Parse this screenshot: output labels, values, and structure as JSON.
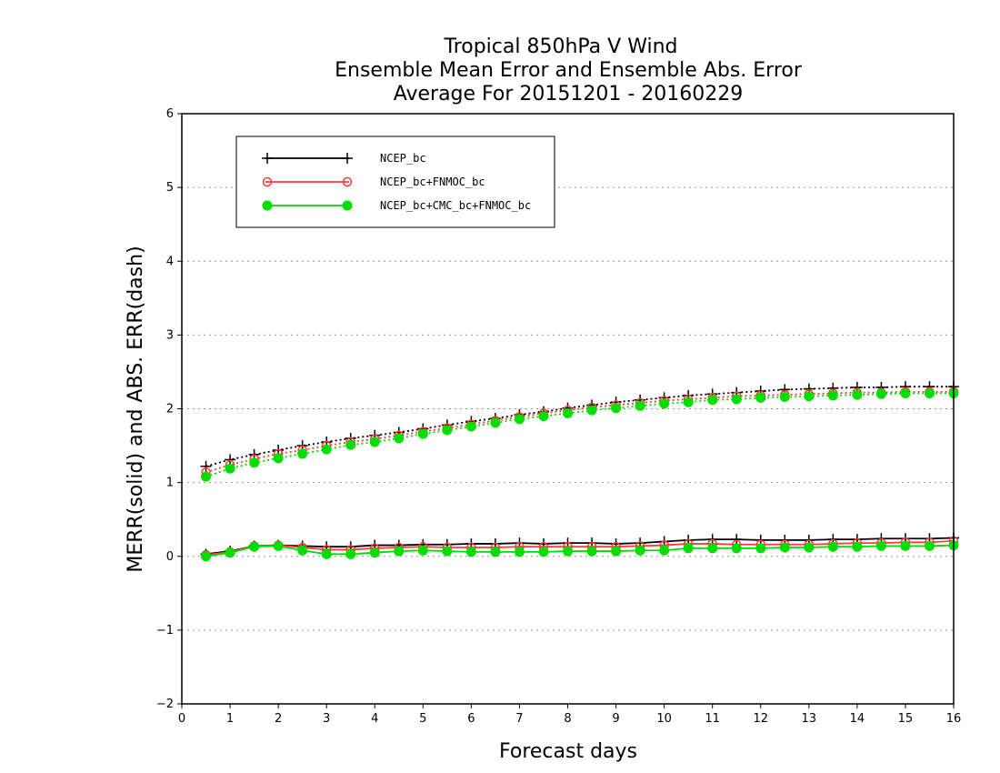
{
  "chart_data": {
    "type": "line",
    "title_lines": [
      "Tropical 850hPa V Wind",
      "Ensemble Mean Error and Ensemble Abs. Error",
      "Average For 20151201 - 20160229"
    ],
    "xlabel": "Forecast days",
    "ylabel": "MERR(solid) and ABS. ERR(dash)",
    "xlim": [
      0,
      16
    ],
    "ylim": [
      -2,
      6
    ],
    "x_ticks": [
      "0",
      "1",
      "2",
      "3",
      "4",
      "5",
      "6",
      "7",
      "8",
      "9",
      "10",
      "11",
      "12",
      "13",
      "14",
      "15",
      "16"
    ],
    "y_ticks": [
      "-2",
      "-1",
      "0",
      "1",
      "2",
      "3",
      "4",
      "5",
      "6"
    ],
    "grid": "horizontal dotted",
    "legend_position": "top-left",
    "x": [
      0.5,
      1,
      1.5,
      2,
      2.5,
      3,
      3.5,
      4,
      4.5,
      5,
      5.5,
      6,
      6.5,
      7,
      7.5,
      8,
      8.5,
      9,
      9.5,
      10,
      10.5,
      11,
      11.5,
      12,
      12.5,
      13,
      13.5,
      14,
      14.5,
      15,
      15.5,
      16
    ],
    "series": [
      {
        "name": "NCEP_bc",
        "color": "#000000",
        "marker": "plus",
        "merr": [
          0.03,
          0.07,
          0.14,
          0.15,
          0.14,
          0.13,
          0.13,
          0.15,
          0.15,
          0.16,
          0.16,
          0.17,
          0.17,
          0.18,
          0.17,
          0.18,
          0.18,
          0.17,
          0.18,
          0.2,
          0.22,
          0.23,
          0.23,
          0.22,
          0.22,
          0.22,
          0.23,
          0.23,
          0.24,
          0.24,
          0.24,
          0.25
        ],
        "abs_err": [
          1.22,
          1.31,
          1.38,
          1.44,
          1.5,
          1.55,
          1.6,
          1.64,
          1.68,
          1.73,
          1.78,
          1.83,
          1.87,
          1.92,
          1.96,
          2.01,
          2.05,
          2.09,
          2.12,
          2.15,
          2.18,
          2.2,
          2.22,
          2.24,
          2.26,
          2.27,
          2.28,
          2.29,
          2.29,
          2.3,
          2.3,
          2.3
        ]
      },
      {
        "name": "NCEP_bc+FNMOC_bc",
        "color": "#ff3b3b",
        "marker": "open-circle",
        "merr": [
          0.02,
          0.06,
          0.14,
          0.15,
          0.12,
          0.09,
          0.09,
          0.11,
          0.12,
          0.13,
          0.12,
          0.12,
          0.12,
          0.13,
          0.13,
          0.13,
          0.13,
          0.13,
          0.14,
          0.15,
          0.17,
          0.17,
          0.16,
          0.16,
          0.16,
          0.16,
          0.17,
          0.18,
          0.18,
          0.19,
          0.19,
          0.21
        ],
        "abs_err": [
          1.14,
          1.24,
          1.32,
          1.39,
          1.44,
          1.5,
          1.55,
          1.59,
          1.64,
          1.69,
          1.74,
          1.79,
          1.84,
          1.89,
          1.94,
          1.98,
          2.02,
          2.05,
          2.08,
          2.11,
          2.13,
          2.15,
          2.17,
          2.18,
          2.19,
          2.2,
          2.21,
          2.22,
          2.22,
          2.23,
          2.23,
          2.23
        ]
      },
      {
        "name": "NCEP_bc+CMC_bc+FNMOC_bc",
        "color": "#00dd00",
        "marker": "filled-circle",
        "merr": [
          0.0,
          0.05,
          0.13,
          0.14,
          0.08,
          0.03,
          0.03,
          0.05,
          0.07,
          0.08,
          0.07,
          0.06,
          0.06,
          0.06,
          0.06,
          0.07,
          0.07,
          0.07,
          0.08,
          0.08,
          0.11,
          0.11,
          0.11,
          0.11,
          0.12,
          0.12,
          0.13,
          0.13,
          0.14,
          0.14,
          0.14,
          0.15
        ],
        "abs_err": [
          1.08,
          1.19,
          1.27,
          1.33,
          1.39,
          1.45,
          1.51,
          1.55,
          1.6,
          1.66,
          1.71,
          1.76,
          1.81,
          1.86,
          1.9,
          1.94,
          1.98,
          2.01,
          2.04,
          2.07,
          2.09,
          2.12,
          2.13,
          2.15,
          2.16,
          2.17,
          2.18,
          2.19,
          2.2,
          2.21,
          2.21,
          2.21
        ]
      }
    ]
  }
}
